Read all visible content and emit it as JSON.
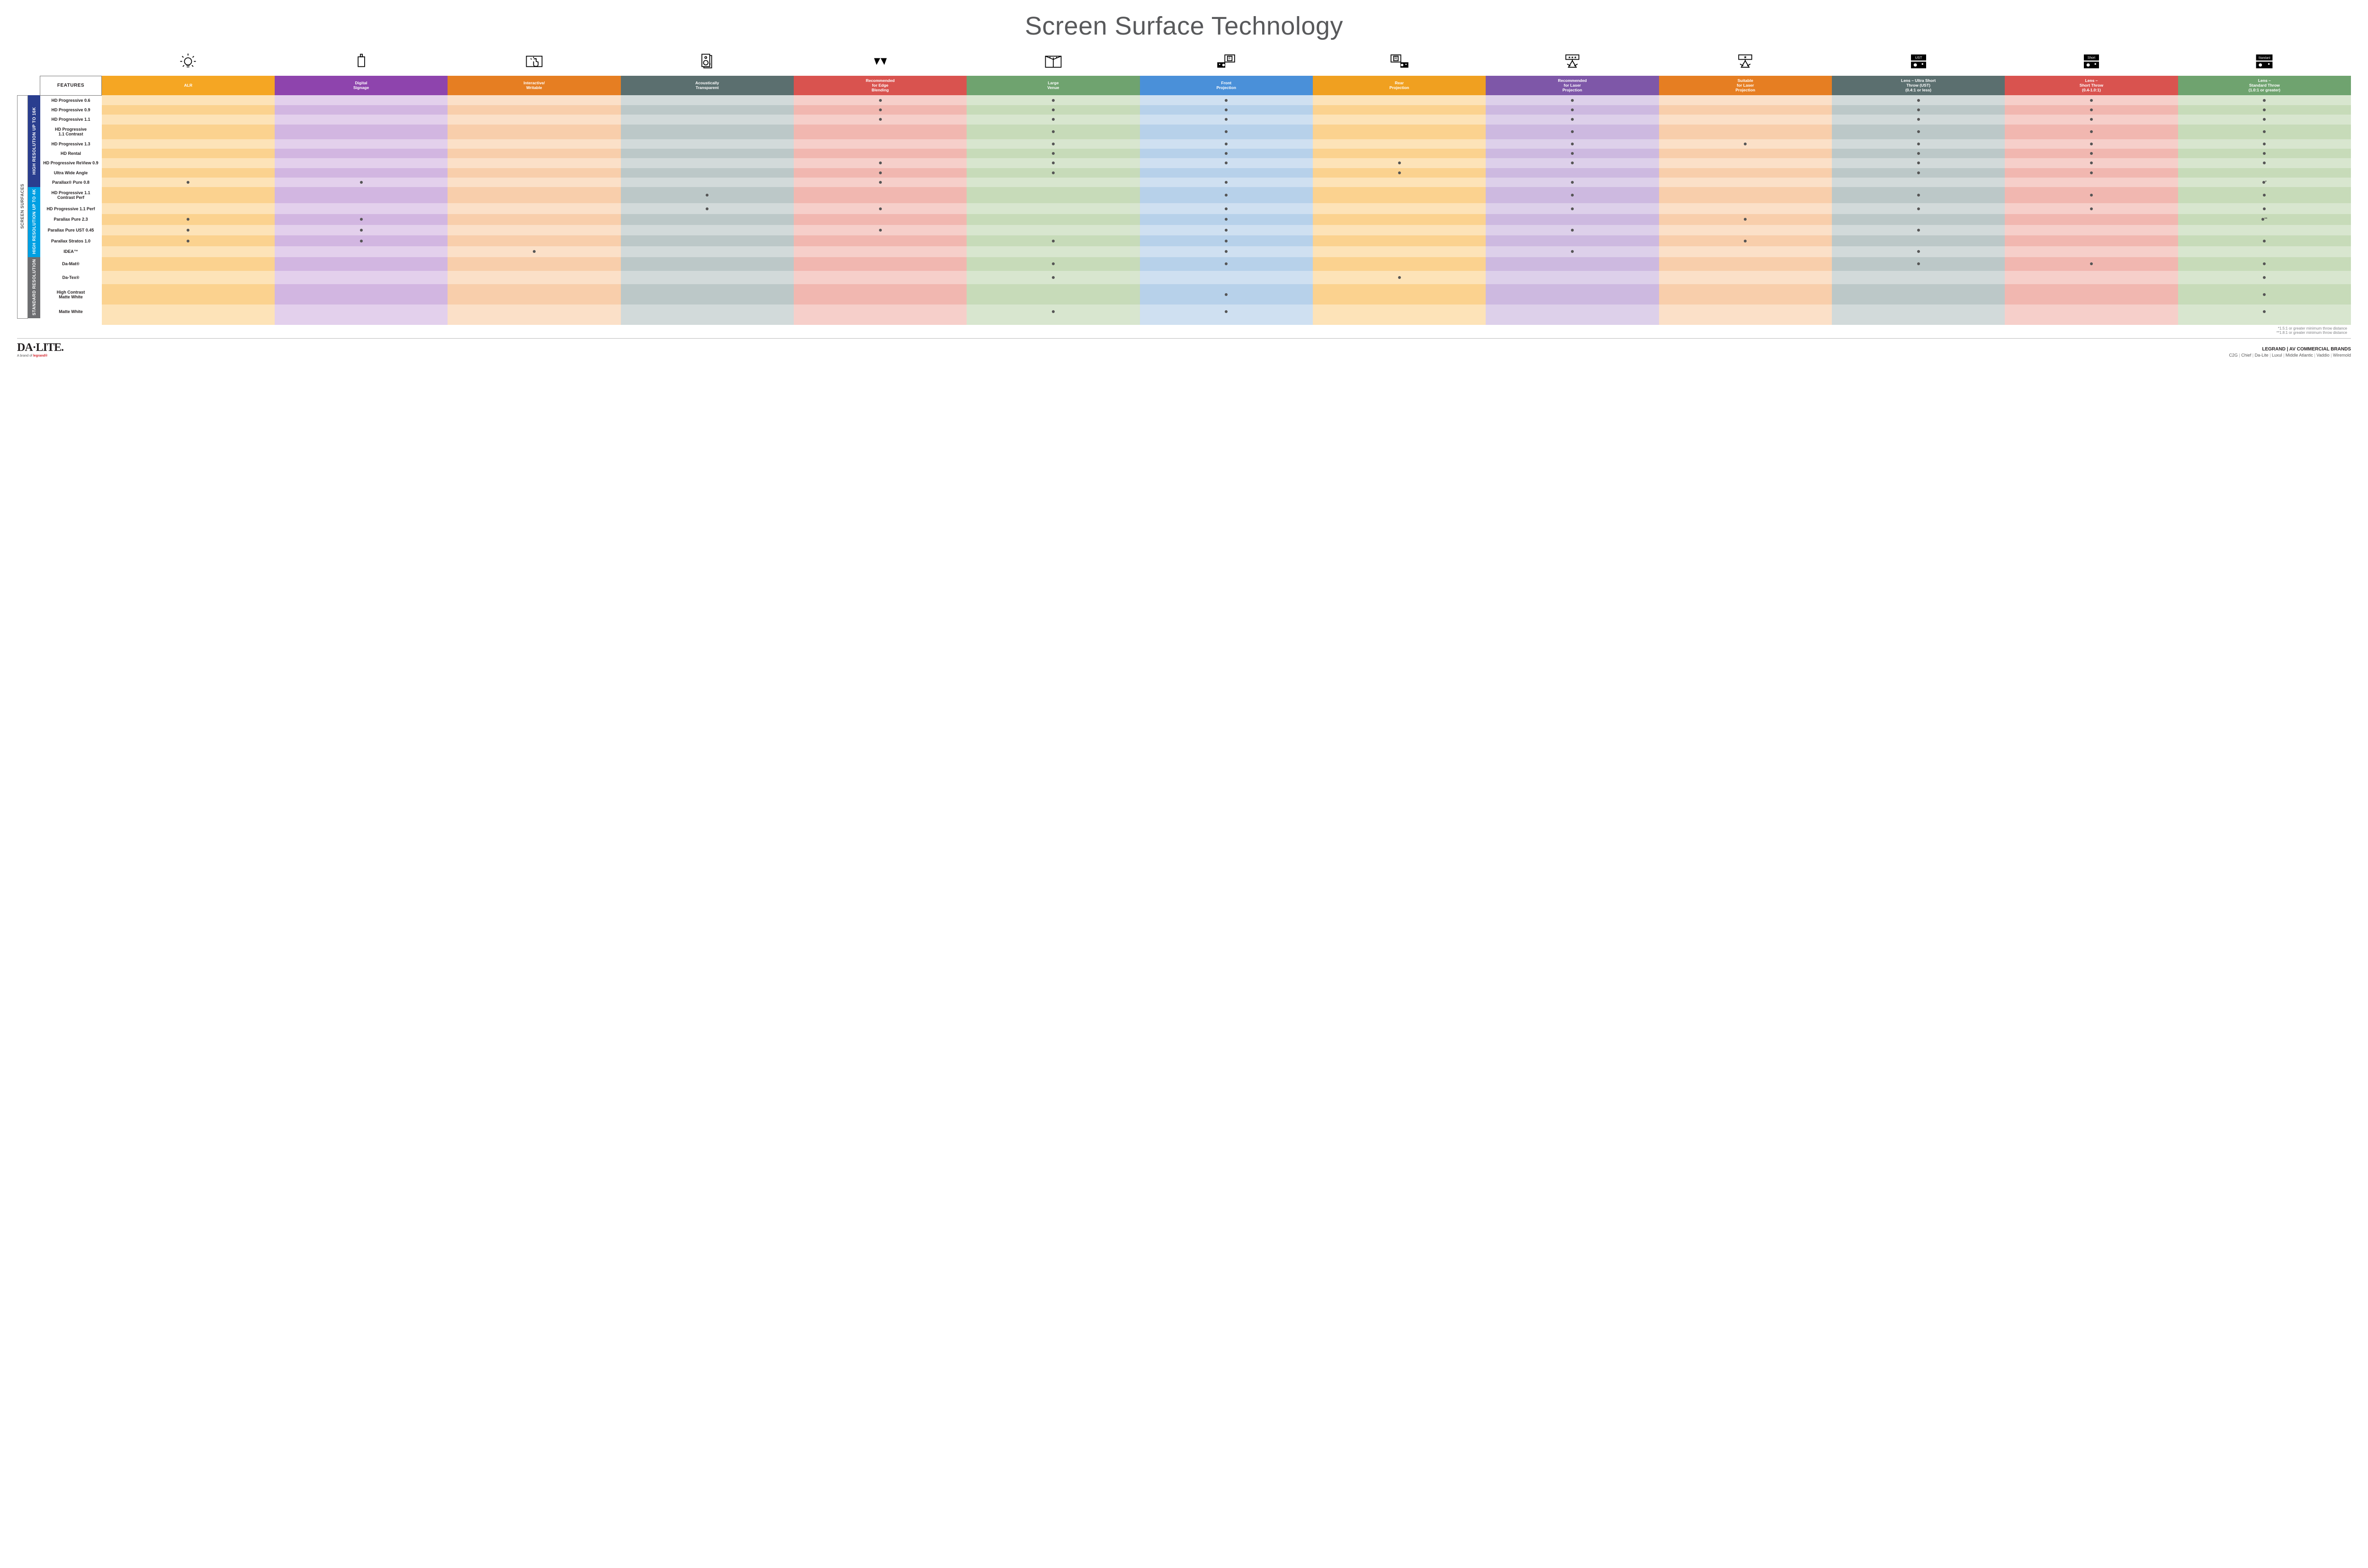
{
  "title": "Screen Surface Technology",
  "columns": [
    {
      "id": "alr",
      "label": "ALR",
      "color": "#f5a623",
      "s1": "#fde3b8",
      "s2": "#fbd28f",
      "icon": "bulb"
    },
    {
      "id": "signage",
      "label": "Digital\nSignage",
      "color": "#8e44ad",
      "s1": "#e3d0ec",
      "s2": "#d2b6e1",
      "icon": "signage"
    },
    {
      "id": "interactive",
      "label": "Interactive/\nWritable",
      "color": "#e67e22",
      "s1": "#fbe0c8",
      "s2": "#f8ceab",
      "icon": "touch"
    },
    {
      "id": "acoustic",
      "label": "Acoustically\nTransparent",
      "color": "#5b6f6f",
      "s1": "#d2dada",
      "s2": "#bcc8c8",
      "icon": "speaker"
    },
    {
      "id": "edge",
      "label": "Recommended\nfor Edge\nBlending",
      "color": "#d9534f",
      "s1": "#f6cfca",
      "s2": "#f1b7b0",
      "icon": "vvv"
    },
    {
      "id": "large",
      "label": "Large\nVenue",
      "color": "#6fa36f",
      "s1": "#d8e6cf",
      "s2": "#c7dbb9",
      "icon": "venue"
    },
    {
      "id": "front",
      "label": "Front\nProjection",
      "color": "#4a90d9",
      "s1": "#cfe0f1",
      "s2": "#b7d1ea",
      "icon": "front"
    },
    {
      "id": "rear",
      "label": "Rear\nProjection",
      "color": "#f0a020",
      "s1": "#fde3b8",
      "s2": "#fbd28f",
      "icon": "rear"
    },
    {
      "id": "reclaser",
      "label": "Recommended\nfor Laser\nProjection",
      "color": "#7e57a8",
      "s1": "#ddd0ea",
      "s2": "#cdb9e0",
      "icon": "laser3"
    },
    {
      "id": "suitlaser",
      "label": "Suitable\nfor Laser\nProjection",
      "color": "#e67e22",
      "s1": "#fbe0c8",
      "s2": "#f8ceab",
      "icon": "laser1"
    },
    {
      "id": "ust",
      "label": "Lens – Ultra Short\nThrow (UST)\n(0.4:1 or less)",
      "color": "#5b6f6f",
      "s1": "#d2dada",
      "s2": "#bcc8c8",
      "icon": "projUST"
    },
    {
      "id": "short",
      "label": "Lens –\nShort Throw\n(0.4-1.0:1)",
      "color": "#d9534f",
      "s1": "#f6cfca",
      "s2": "#f1b7b0",
      "icon": "projShort"
    },
    {
      "id": "std",
      "label": "Lens –\nStandard Throw\n(1.0:1 or greater)",
      "color": "#6fa36f",
      "s1": "#d8e6cf",
      "s2": "#c7dbb9",
      "icon": "projStd"
    }
  ],
  "sidebar_outer": {
    "label": "SCREEN SURFACES",
    "color": "#fff",
    "text": "#555",
    "border": "#888"
  },
  "categories": [
    {
      "id": "hi16k",
      "label": "HIGH RESOLUTION UP TO 16K",
      "color": "#2a3e8f",
      "rows": [
        {
          "name": "HD Progressive 0.6",
          "dots": {
            "edge": "•",
            "large": "•",
            "front": "•",
            "reclaser": "•",
            "ust": "•",
            "short": "•",
            "std": "•"
          }
        },
        {
          "name": "HD Progressive 0.9",
          "dots": {
            "edge": "•",
            "large": "•",
            "front": "•",
            "reclaser": "•",
            "ust": "•",
            "short": "•",
            "std": "•"
          }
        },
        {
          "name": "HD Progressive 1.1",
          "dots": {
            "edge": "•",
            "large": "•",
            "front": "•",
            "reclaser": "•",
            "ust": "•",
            "short": "•",
            "std": "•"
          }
        },
        {
          "name": "HD Progressive\n1.1 Contrast",
          "dots": {
            "large": "•",
            "front": "•",
            "reclaser": "•",
            "ust": "•",
            "short": "•",
            "std": "•"
          }
        },
        {
          "name": "HD Progressive 1.3",
          "dots": {
            "large": "•",
            "front": "•",
            "reclaser": "•",
            "suitlaser": "•",
            "ust": "•",
            "short": "•",
            "std": "•"
          }
        },
        {
          "name": "HD Rental",
          "dots": {
            "large": "•",
            "front": "•",
            "reclaser": "•",
            "ust": "•",
            "short": "•",
            "std": "•"
          }
        },
        {
          "name": "HD Progressive ReView 0.9",
          "dots": {
            "edge": "•",
            "large": "•",
            "front": "•",
            "rear": "•",
            "reclaser": "•",
            "ust": "•",
            "short": "•",
            "std": "•"
          }
        },
        {
          "name": "Ultra Wide Angle",
          "dots": {
            "edge": "•",
            "large": "•",
            "rear": "•",
            "ust": "•",
            "short": "•"
          }
        },
        {
          "name": "Parallax® Pure 0.8",
          "dots": {
            "alr": "•",
            "signage": "•",
            "edge": "•",
            "front": "•",
            "reclaser": "•",
            "std": "•*"
          }
        }
      ]
    },
    {
      "id": "hi4k",
      "label": "HIGH RESOLUTION UP TO 4K",
      "color": "#00a0e3",
      "rows": [
        {
          "name": "HD Progressive 1.1\nContrast Perf",
          "dots": {
            "acoustic": "•",
            "front": "•",
            "reclaser": "•",
            "ust": "•",
            "short": "•",
            "std": "•"
          }
        },
        {
          "name": "HD Progressive 1.1 Perf",
          "dots": {
            "acoustic": "•",
            "edge": "•",
            "front": "•",
            "reclaser": "•",
            "ust": "•",
            "short": "•",
            "std": "•"
          }
        },
        {
          "name": "Parallax Pure 2.3",
          "dots": {
            "alr": "•",
            "signage": "•",
            "front": "•",
            "suitlaser": "•",
            "std": "•**"
          }
        },
        {
          "name": "Parallax Pure UST 0.45",
          "dots": {
            "alr": "•",
            "signage": "•",
            "edge": "•",
            "front": "•",
            "reclaser": "•",
            "ust": "•"
          }
        },
        {
          "name": "Parallax Stratos 1.0",
          "dots": {
            "alr": "•",
            "signage": "•",
            "large": "•",
            "front": "•",
            "suitlaser": "•",
            "std": "•"
          }
        },
        {
          "name": "IDEA™",
          "dots": {
            "interactive": "•",
            "front": "•",
            "reclaser": "•",
            "ust": "•"
          }
        }
      ]
    },
    {
      "id": "stdres",
      "label": "STANDARD\nRESOLUTION",
      "color": "#6d6e71",
      "rows": [
        {
          "name": "Da-Mat®",
          "dots": {
            "large": "•",
            "front": "•",
            "ust": "•",
            "short": "•",
            "std": "•"
          }
        },
        {
          "name": "Da-Tex®",
          "dots": {
            "large": "•",
            "rear": "•",
            "std": "•"
          }
        },
        {
          "name": "High Contrast\nMatte White",
          "dots": {
            "front": "•",
            "std": "•"
          }
        },
        {
          "name": "Matte White",
          "dots": {
            "large": "•",
            "front": "•",
            "std": "•"
          }
        }
      ]
    }
  ],
  "footnotes": [
    "*1.5:1 or greater minimum throw distance",
    "**1.8:1 or greater minimum throw distance"
  ],
  "footer": {
    "logo": "DA·LITE.",
    "logo_sub_pre": "A brand of ",
    "logo_sub_brand": "legrand®",
    "brands_title": "LEGRAND | AV COMMERCIAL BRANDS",
    "brands": [
      "C2G",
      "Chief",
      "Da-Lite",
      "Luxul",
      "Middle Atlantic",
      "Vaddio",
      "Wiremold"
    ]
  },
  "features_header": "FEATURES"
}
